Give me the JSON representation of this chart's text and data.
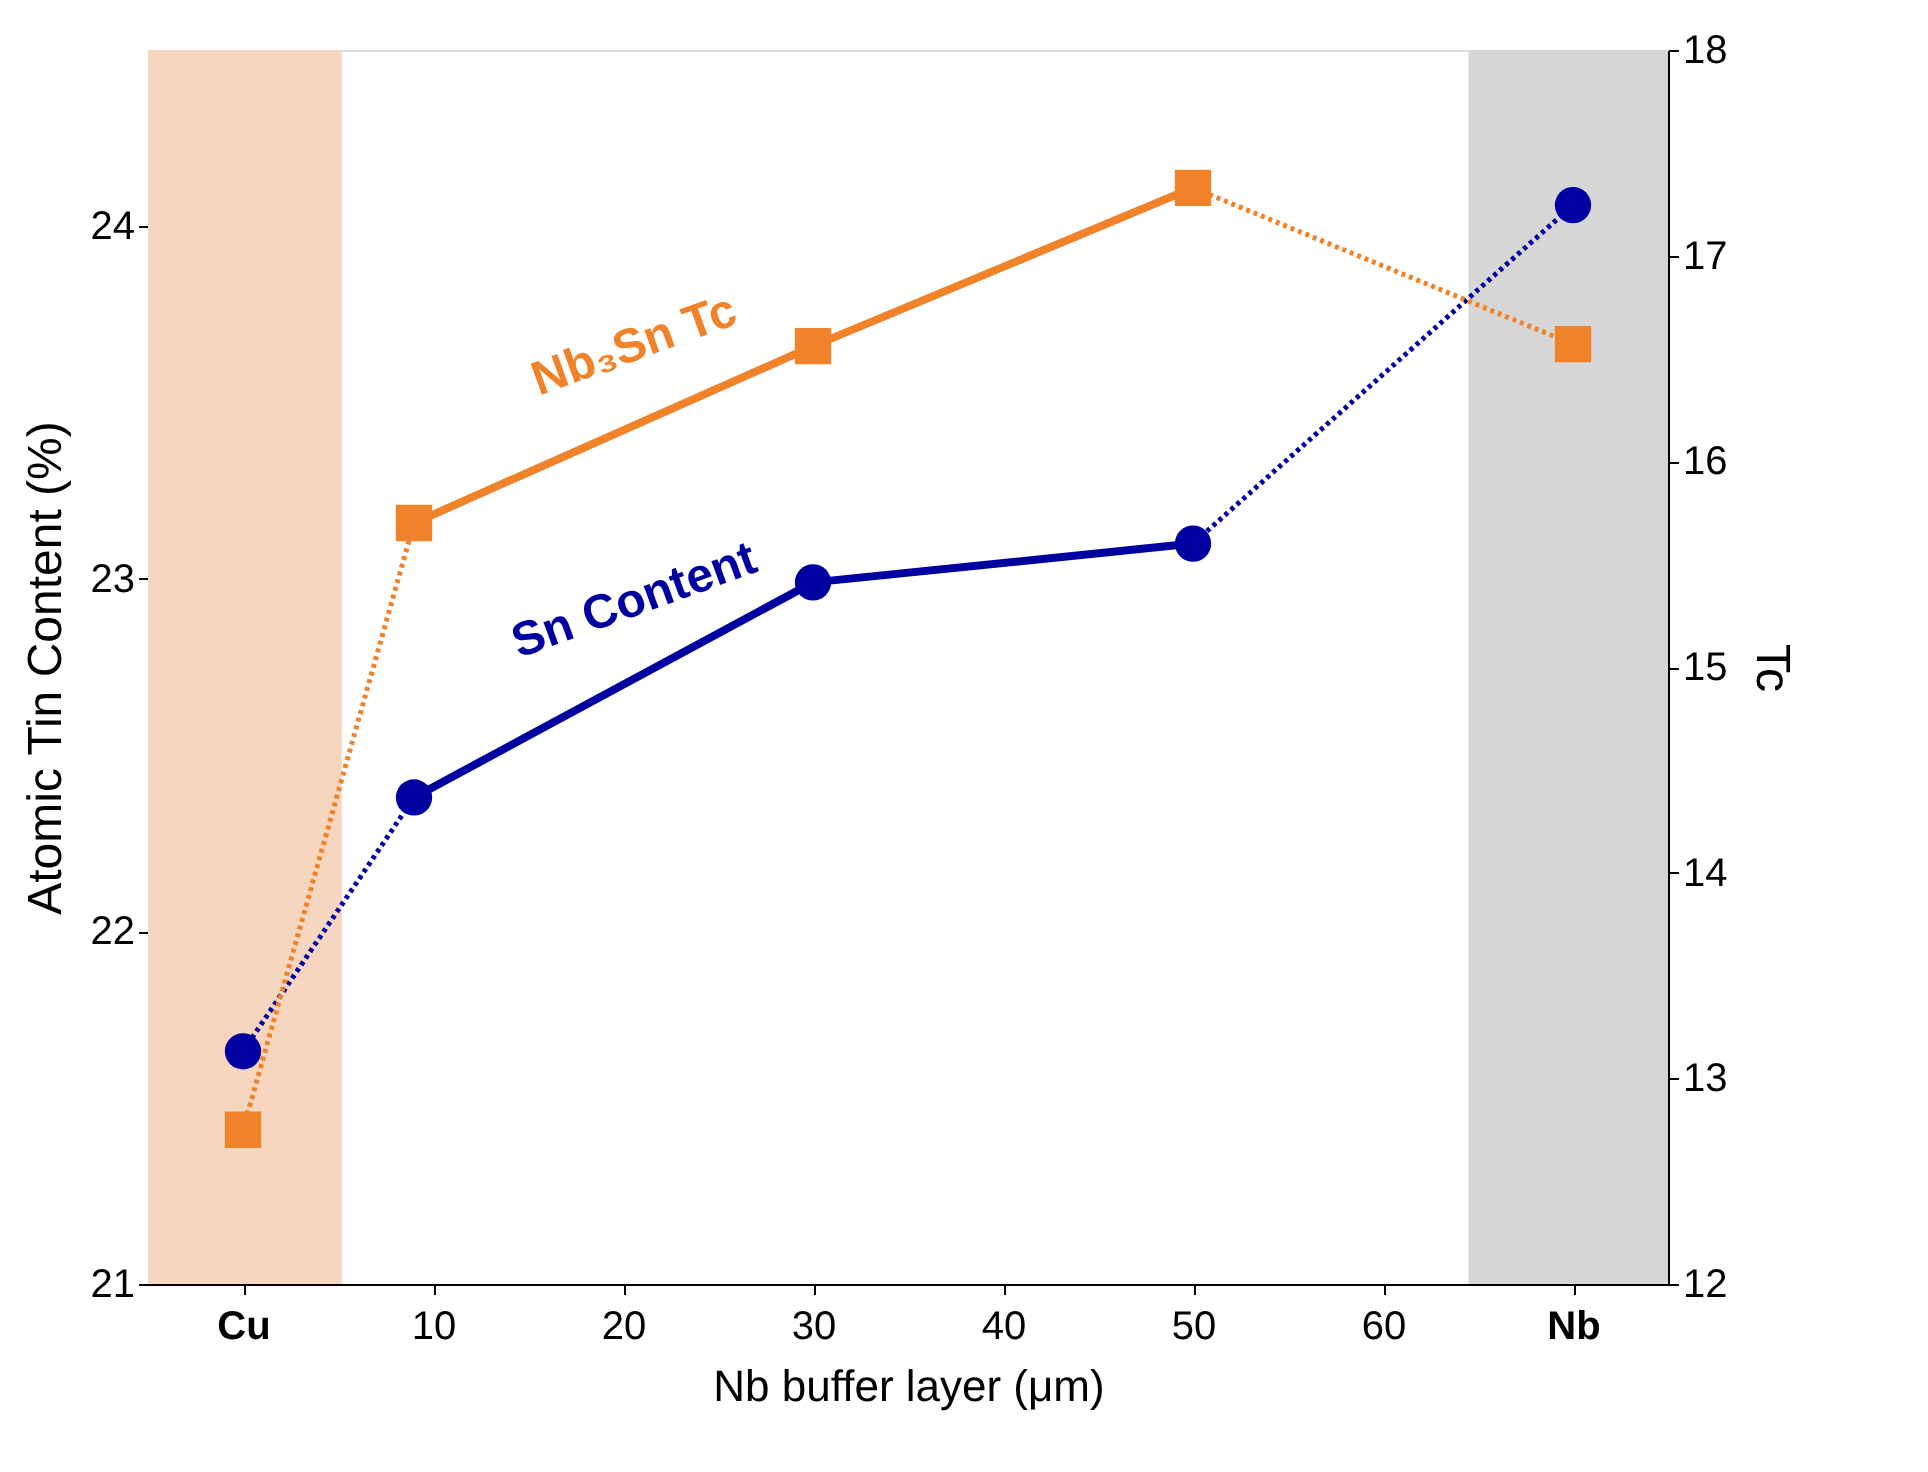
{
  "chart_data": {
    "type": "line",
    "xlabel": "Nb buffer layer (μm)",
    "ylabel": "Atomic Tin Content (%)",
    "y2label": "Tc",
    "x": [
      0,
      9,
      30,
      50,
      70
    ],
    "xlim": [
      -5,
      75
    ],
    "xticks": [
      {
        "value": 0,
        "label": "Cu"
      },
      10,
      20,
      30,
      40,
      50,
      60,
      {
        "value": 70,
        "label": "Nb"
      }
    ],
    "ylim": [
      21,
      24.5
    ],
    "yticks": [
      21,
      22,
      23,
      24
    ],
    "y2lim": [
      12,
      18
    ],
    "y2ticks": [
      12,
      13,
      14,
      15,
      16,
      17,
      18
    ],
    "grid": false,
    "bands": [
      {
        "axis": "x",
        "from": -5,
        "to": 5.2,
        "color": "#f7d6bf"
      },
      {
        "axis": "x",
        "from": 64.5,
        "to": 75,
        "color": "#d6d6d6"
      }
    ],
    "series": [
      {
        "name": "Sn Content",
        "color": "#0000a0",
        "axis": "y",
        "marker": "circle",
        "line_style": "dotted",
        "values": [
          21.66,
          22.38,
          22.99,
          23.1,
          24.06
        ]
      },
      {
        "color": "#0000a0",
        "axis": "y",
        "marker": "none",
        "line_style": "solid",
        "values": [
          null,
          22.38,
          22.99,
          23.1,
          null
        ]
      },
      {
        "name": "Nb₃Sn Tc",
        "color": "#f0822a",
        "axis": "y2",
        "marker": "square",
        "line_style": "dotted",
        "values": [
          12.75,
          15.7,
          16.56,
          17.33,
          16.57
        ]
      },
      {
        "color": "#f0822a",
        "axis": "y2",
        "marker": "none",
        "line_style": "solid",
        "values": [
          null,
          15.7,
          16.56,
          17.33,
          null
        ]
      }
    ]
  }
}
